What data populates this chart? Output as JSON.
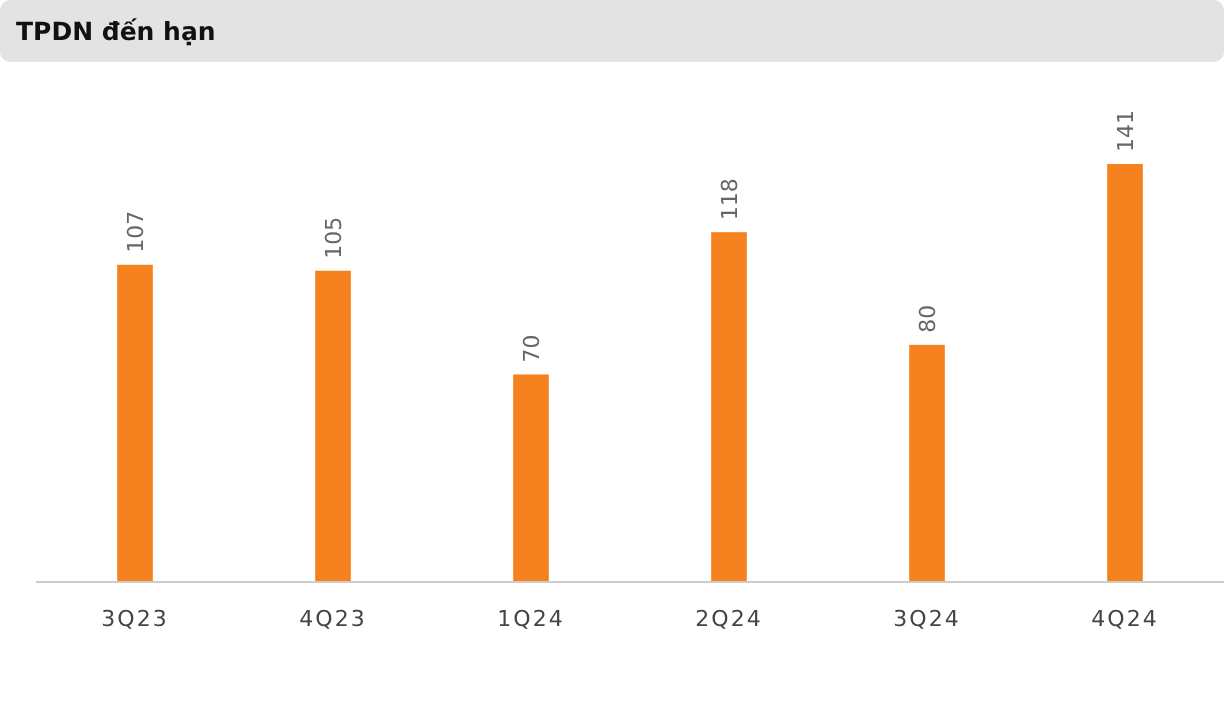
{
  "chart_data": {
    "type": "bar",
    "title": "TPDN đến hạn",
    "categories": [
      "3Q23",
      "4Q23",
      "1Q24",
      "2Q24",
      "3Q24",
      "4Q24"
    ],
    "values": [
      107,
      105,
      70,
      118,
      80,
      141
    ],
    "color": "#f5821f",
    "data_labels": true
  }
}
